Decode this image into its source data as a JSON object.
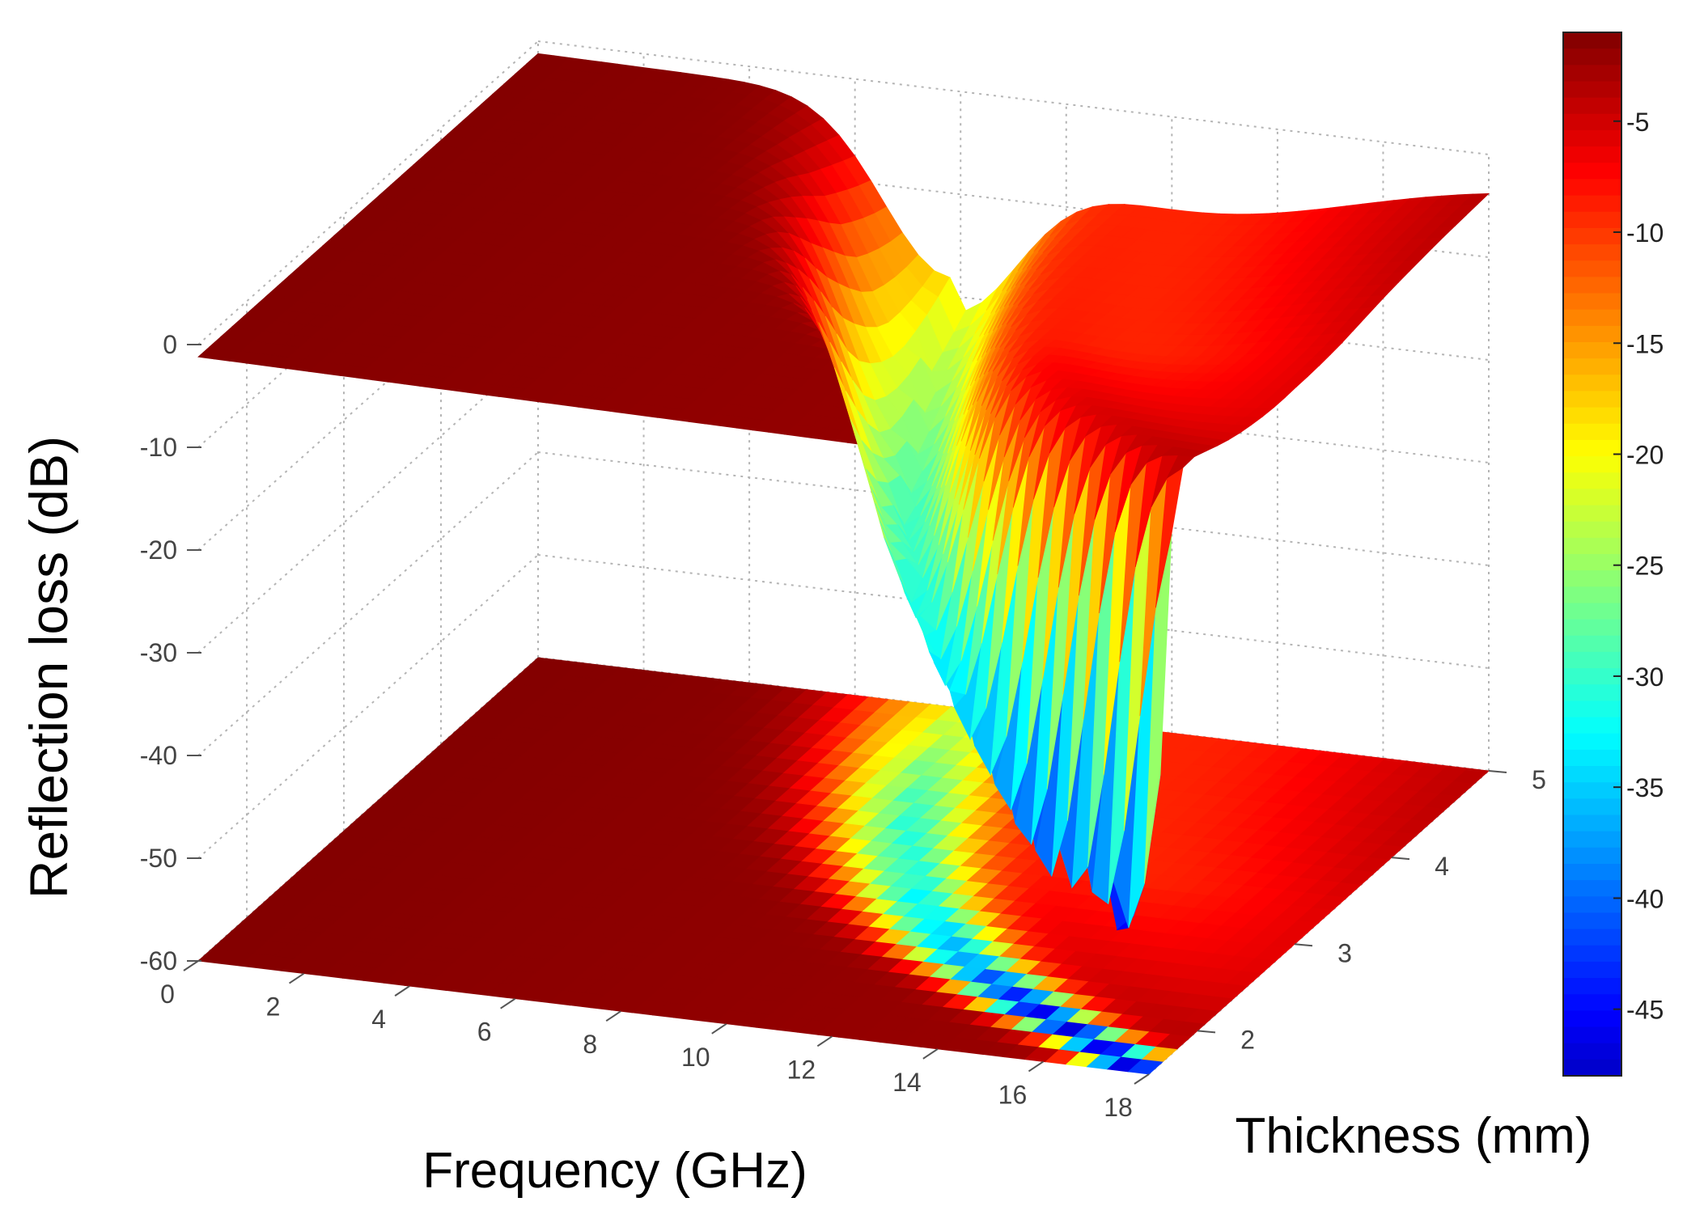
{
  "chart_data": {
    "type": "surface3d",
    "title": "",
    "xlabel": "Frequency (GHz)",
    "ylabel": "Thickness (mm)",
    "zlabel": "Reflection loss (dB)",
    "x_ticks": [
      "0",
      "2",
      "4",
      "6",
      "8",
      "10",
      "12",
      "14",
      "16",
      "18"
    ],
    "y_ticks": [
      "2",
      "3",
      "4",
      "5"
    ],
    "z_ticks": [
      "0",
      "-10",
      "-20",
      "-30",
      "-40",
      "-50",
      "-60"
    ],
    "xlim": [
      0,
      18
    ],
    "ylim": [
      1.5,
      5
    ],
    "zlim": [
      -60,
      0
    ],
    "colorbar": {
      "ticks": [
        "-5",
        "-10",
        "-15",
        "-20",
        "-25",
        "-30",
        "-35",
        "-40",
        "-45"
      ],
      "range": [
        -48,
        -1
      ],
      "colormap": "jet"
    },
    "grid": true,
    "projected_contour_at_z": -60,
    "surface": {
      "description_model": "matching-thickness dip",
      "dip_curve": [
        {
          "thickness": 1.6,
          "frequency": 17.5,
          "rl": -46
        },
        {
          "thickness": 2.0,
          "frequency": 15.0,
          "rl": -45
        },
        {
          "thickness": 2.5,
          "frequency": 12.5,
          "rl": -35
        },
        {
          "thickness": 3.0,
          "frequency": 10.8,
          "rl": -30
        },
        {
          "thickness": 3.5,
          "frequency": 9.6,
          "rl": -28
        },
        {
          "thickness": 4.0,
          "frequency": 8.8,
          "rl": -26
        },
        {
          "thickness": 4.5,
          "frequency": 8.2,
          "rl": -22
        },
        {
          "thickness": 5.0,
          "frequency": 7.8,
          "rl": -18
        }
      ]
    }
  }
}
